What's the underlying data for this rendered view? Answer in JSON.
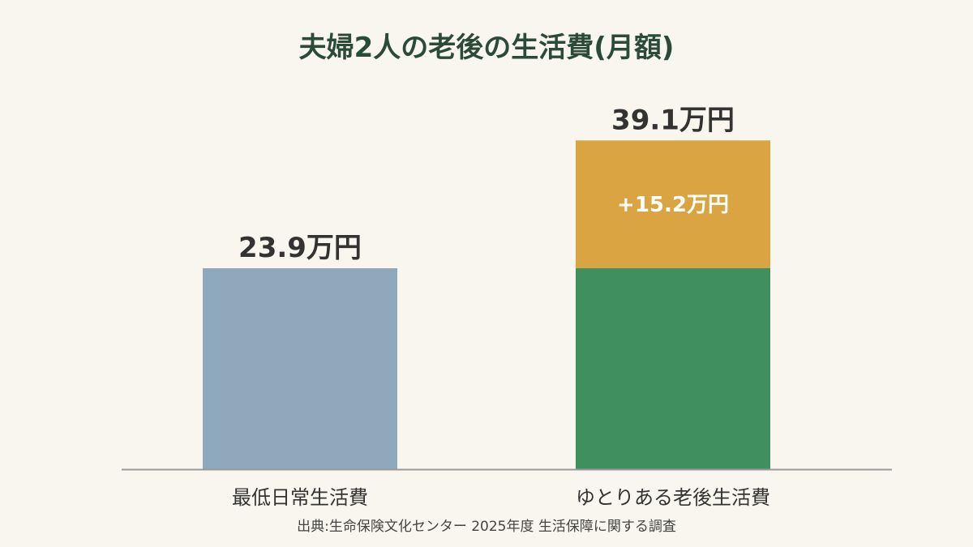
{
  "chart_data": {
    "type": "bar",
    "stacked": true,
    "title": "夫婦2人の老後の生活費(月額)",
    "unit": "万円",
    "categories": [
      "最低日常生活費",
      "ゆとりある老後生活費"
    ],
    "series": [
      {
        "values": [
          23.9,
          23.9
        ],
        "colors": [
          "#8fa8bc",
          "#3f8f5f"
        ]
      },
      {
        "values": [
          0,
          15.2
        ],
        "color": "#d9a441"
      }
    ],
    "totals": [
      23.9,
      39.1
    ],
    "total_labels": [
      "23.9万円",
      "39.1万円"
    ],
    "segment_labels": [
      "",
      "+15.2万円"
    ],
    "ylim": [
      0,
      40
    ],
    "grid": false,
    "legend": "none"
  },
  "source": "出典:生命保険文化センター 2025年度 生活保障に関する調査",
  "colors": {
    "background": "#f9f6ef",
    "title": "#2c4a38",
    "axis": "#999999"
  }
}
